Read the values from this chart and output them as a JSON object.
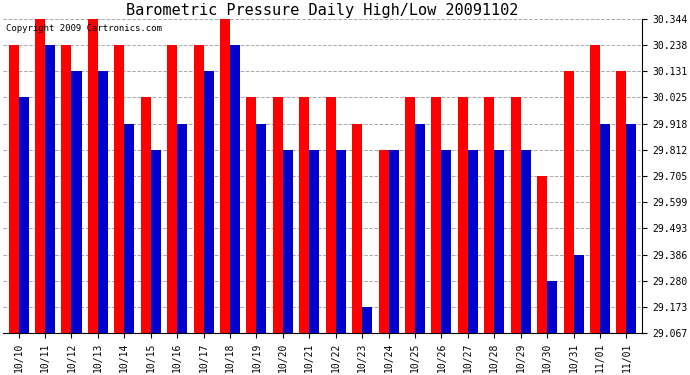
{
  "title": "Barometric Pressure Daily High/Low 20091102",
  "copyright": "Copyright 2009 Cartronics.com",
  "yticks": [
    29.067,
    29.173,
    29.28,
    29.386,
    29.493,
    29.599,
    29.705,
    29.812,
    29.918,
    30.025,
    30.131,
    30.238,
    30.344
  ],
  "ylim": [
    29.067,
    30.344
  ],
  "categories": [
    "10/10",
    "10/11",
    "10/12",
    "10/13",
    "10/14",
    "10/15",
    "10/16",
    "10/17",
    "10/18",
    "10/19",
    "10/20",
    "10/21",
    "10/22",
    "10/23",
    "10/24",
    "10/25",
    "10/26",
    "10/27",
    "10/28",
    "10/29",
    "10/30",
    "10/31",
    "11/01",
    "11/01"
  ],
  "highs": [
    30.238,
    30.344,
    30.238,
    30.344,
    30.238,
    30.025,
    30.238,
    30.238,
    30.344,
    30.025,
    30.025,
    30.025,
    30.025,
    29.918,
    29.812,
    30.025,
    30.025,
    30.025,
    30.025,
    30.025,
    29.705,
    30.131,
    30.238,
    30.131
  ],
  "lows": [
    30.025,
    30.238,
    30.131,
    30.131,
    29.918,
    29.812,
    29.918,
    30.131,
    30.238,
    29.918,
    29.812,
    29.812,
    29.812,
    29.173,
    29.812,
    29.918,
    29.812,
    29.812,
    29.812,
    29.812,
    29.28,
    29.386,
    29.918,
    29.918
  ],
  "bar_width": 0.38,
  "high_color": "#FF0000",
  "low_color": "#0000CC",
  "bg_color": "#FFFFFF",
  "plot_bg_color": "#FFFFFF",
  "grid_color": "#AAAAAA",
  "title_fontsize": 11,
  "tick_fontsize": 7,
  "copyright_fontsize": 6.5,
  "baseline": 29.067
}
